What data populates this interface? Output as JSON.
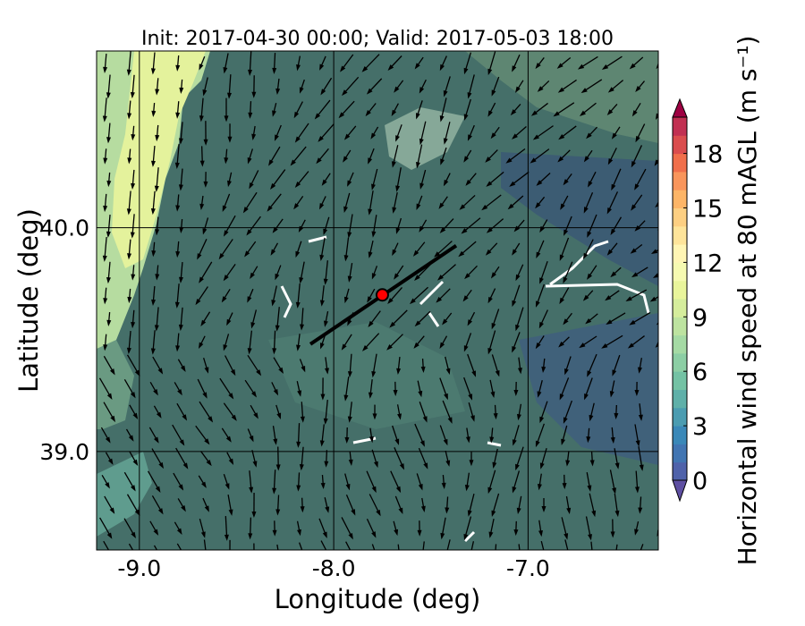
{
  "chart_data": {
    "type": "map",
    "title": "Init: 2017-04-30 00:00; Valid: 2017-05-03 18:00",
    "x_label": "Longitude (deg)",
    "y_label": "Latitude (deg)",
    "xlim": [
      -9.22,
      -6.33
    ],
    "ylim": [
      38.56,
      40.79
    ],
    "xticks": [
      {
        "value": -9,
        "label": "-9.0"
      },
      {
        "value": -8,
        "label": "-8.0"
      },
      {
        "value": -7,
        "label": "-7.0"
      }
    ],
    "yticks": [
      {
        "value": 39,
        "label": "39.0"
      },
      {
        "value": 40,
        "label": "40.0"
      }
    ],
    "grid": true,
    "transect": {
      "x": [
        -8.12,
        -7.37
      ],
      "y": [
        39.48,
        39.92
      ],
      "color": "#000000"
    },
    "site": {
      "x": -7.75,
      "y": 39.7,
      "color": "#ff0000"
    },
    "colorbar": {
      "label": "Horizontal wind speed at 80 mAGL (m s⁻¹)",
      "lim": [
        0,
        20
      ],
      "ticks": [
        0,
        3,
        6,
        9,
        12,
        15,
        18
      ],
      "colors": [
        "#5e4fa2",
        "#4f62aa",
        "#4175b2",
        "#3a88b8",
        "#4b9cb1",
        "#5fb0a9",
        "#74c2a4",
        "#8ccea4",
        "#a5daa4",
        "#bde3a0",
        "#d5ed9c",
        "#e9f59b",
        "#f6fab1",
        "#fff5b4",
        "#fee49a",
        "#fdcf82",
        "#fdb567",
        "#f9955b",
        "#f06f4b",
        "#da4d4e",
        "#c13052",
        "#9e0142"
      ]
    }
  }
}
